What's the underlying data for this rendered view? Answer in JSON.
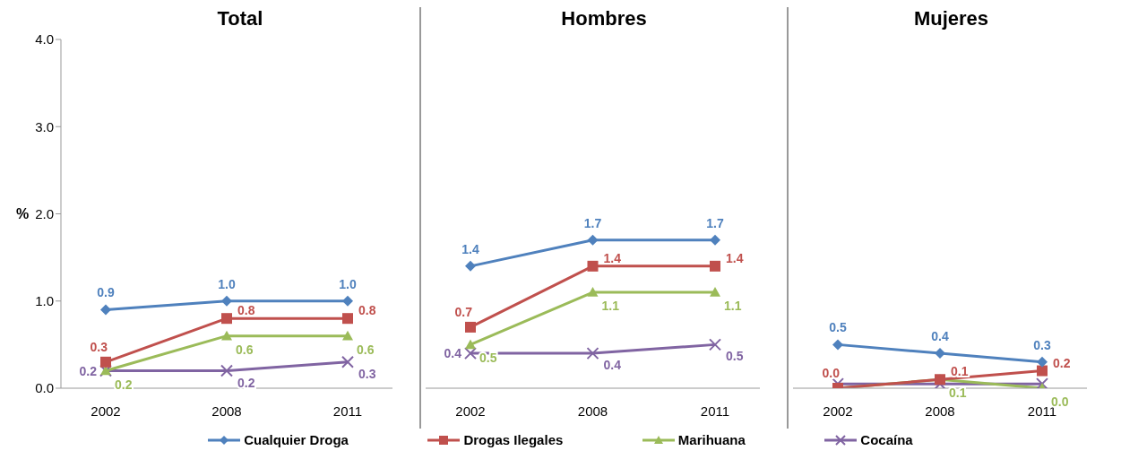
{
  "chart_data": [
    {
      "type": "line",
      "title": "Total",
      "ylabel": "%",
      "categories": [
        "2002",
        "2008",
        "2011"
      ],
      "ylim": [
        0,
        4
      ],
      "yticks": [
        {
          "value": 0,
          "label": "0.0"
        },
        {
          "value": 1,
          "label": "1.0"
        },
        {
          "value": 2,
          "label": "2.0"
        },
        {
          "value": 3,
          "label": "3.0"
        },
        {
          "value": 4,
          "label": "4.0"
        }
      ],
      "legend": "bottom",
      "grid": false,
      "series": [
        {
          "name": "Cualquier Droga",
          "color": "#4f81bd",
          "marker": "diamond",
          "values": [
            0.9,
            1.0,
            1.0
          ],
          "value_labels": [
            "0.9",
            "1.0",
            "1.0"
          ]
        },
        {
          "name": "Drogas Ilegales",
          "color": "#c0504d",
          "marker": "square",
          "values": [
            0.3,
            0.8,
            0.8
          ],
          "value_labels": [
            "0.3",
            "0.8",
            "0.8"
          ]
        },
        {
          "name": "Marihuana",
          "color": "#9bbb59",
          "marker": "triangle",
          "values": [
            0.2,
            0.6,
            0.6
          ],
          "value_labels": [
            "0.2",
            "0.6",
            "0.6"
          ]
        },
        {
          "name": "Cocaína",
          "color": "#8064a2",
          "marker": "cross",
          "values": [
            0.2,
            0.2,
            0.3
          ],
          "value_labels": [
            "0.2",
            "0.2",
            "0.3"
          ]
        }
      ]
    },
    {
      "type": "line",
      "title": "Hombres",
      "categories": [
        "2002",
        "2008",
        "2011"
      ],
      "ylim": [
        0,
        4
      ],
      "tick_labels": "x",
      "grid": false,
      "series": [
        {
          "color": "#4f81bd",
          "marker": "diamond",
          "values": [
            1.4,
            1.7,
            1.7
          ],
          "value_labels": [
            "1.4",
            "1.7",
            "1.7"
          ]
        },
        {
          "color": "#c0504d",
          "marker": "square",
          "values": [
            0.7,
            1.4,
            1.4
          ],
          "value_labels": [
            "0.7",
            "1.4",
            "1.4"
          ]
        },
        {
          "color": "#9bbb59",
          "marker": "triangle",
          "values": [
            0.5,
            1.1,
            1.1
          ],
          "value_labels": [
            "0.5",
            "1.1",
            "1.1"
          ]
        },
        {
          "color": "#8064a2",
          "marker": "cross",
          "values": [
            0.4,
            0.4,
            0.5
          ],
          "value_labels": [
            "0.4",
            "0.4",
            "0.5"
          ]
        }
      ]
    },
    {
      "type": "line",
      "title": "Mujeres",
      "categories": [
        "2002",
        "2008",
        "2011"
      ],
      "ylim": [
        0,
        4
      ],
      "tick_labels": "x",
      "grid": false,
      "series": [
        {
          "color": "#4f81bd",
          "marker": "diamond",
          "values": [
            0.5,
            0.4,
            0.3
          ],
          "value_labels": [
            "0.5",
            "0.4",
            "0.3"
          ]
        },
        {
          "color": "#c0504d",
          "marker": "square",
          "values": [
            0.0,
            0.1,
            0.2
          ],
          "value_labels": [
            "0.0",
            "0.1",
            "0.2"
          ]
        },
        {
          "color": "#9bbb59",
          "marker": "triangle",
          "values": [
            0.0,
            0.1,
            0.0
          ],
          "value_labels": [
            null,
            "0.1",
            "0.0"
          ]
        },
        {
          "color": "#8064a2",
          "marker": "cross",
          "values": [
            0.05,
            0.05,
            0.05
          ]
        }
      ]
    }
  ]
}
